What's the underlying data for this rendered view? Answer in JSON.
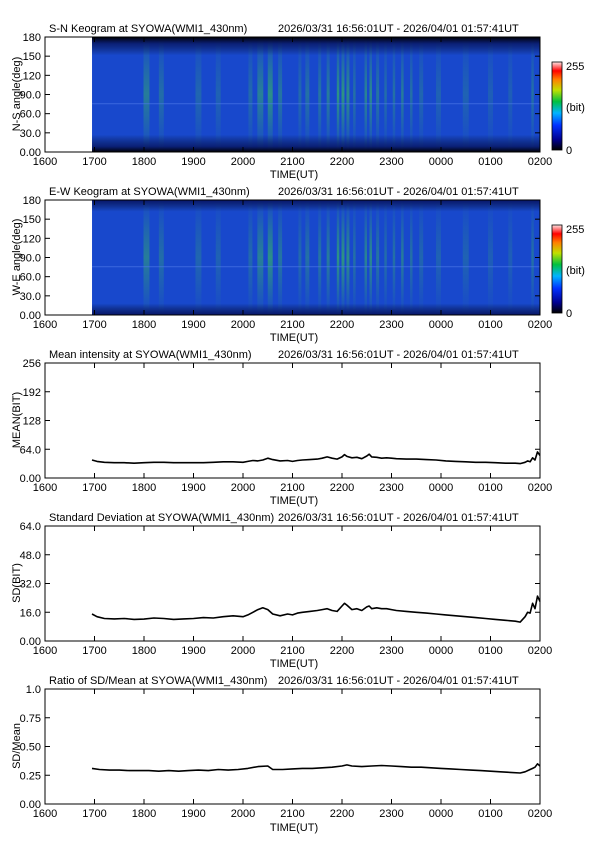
{
  "colors": {
    "ink": "#000000",
    "keogram_low": "#00007a",
    "keogram_mid": "#1f50d0",
    "keogram_aurora": "#3cc03c"
  },
  "time_ticks": [
    "1600",
    "1700",
    "1800",
    "1900",
    "2000",
    "2100",
    "2200",
    "2300",
    "0000",
    "0100",
    "0200"
  ],
  "xlabel": "TIME(UT)",
  "time_range": "2026/03/31 16:56:01UT - 2026/04/01 01:57:41UT",
  "keograms": [
    {
      "title": "S-N Keogram at SYOWA(WMI1_430nm)",
      "ylabel": "N-S angle(deg)",
      "yticks": [
        "0.00",
        "30.0",
        "60.0",
        "90.0",
        "120",
        "150",
        "180"
      ],
      "colorbar": {
        "max": "255",
        "unit": "(bit)",
        "min": "0"
      }
    },
    {
      "title": "E-W Keogram at SYOWA(WMI1_430nm)",
      "ylabel": "W-E angle(deg)",
      "yticks": [
        "0.00",
        "30.0",
        "60.0",
        "90.0",
        "120",
        "150",
        "180"
      ],
      "colorbar": {
        "max": "255",
        "unit": "(bit)",
        "min": "0"
      }
    }
  ],
  "chart_data": [
    {
      "type": "line",
      "title": "Mean intensity at SYOWA(WMI1_430nm)",
      "ylabel": "MEAN(BIT)",
      "xlabel": "TIME(UT)",
      "x_unit": "hours UT since 16:00",
      "yticks": [
        "0.00",
        "64.0",
        "128",
        "192",
        "256"
      ],
      "ylim": [
        0,
        256
      ],
      "x": [
        0.95,
        1.05,
        1.2,
        1.4,
        1.6,
        1.8,
        2.0,
        2.2,
        2.4,
        2.6,
        2.8,
        3.0,
        3.2,
        3.4,
        3.6,
        3.8,
        4.0,
        4.1,
        4.2,
        4.3,
        4.4,
        4.5,
        4.6,
        4.75,
        4.9,
        5.0,
        5.1,
        5.2,
        5.35,
        5.5,
        5.6,
        5.7,
        5.8,
        5.9,
        6.0,
        6.05,
        6.1,
        6.2,
        6.3,
        6.4,
        6.5,
        6.55,
        6.6,
        6.7,
        6.8,
        6.9,
        7.0,
        7.1,
        7.3,
        7.5,
        7.7,
        7.9,
        8.1,
        8.3,
        8.5,
        8.7,
        8.9,
        9.1,
        9.3,
        9.5,
        9.6,
        9.7,
        9.75,
        9.8,
        9.85,
        9.9,
        9.95,
        10.0
      ],
      "y": [
        40,
        37,
        35,
        34,
        34,
        33,
        34,
        35,
        35,
        34,
        34,
        34,
        34,
        35,
        36,
        36,
        35,
        37,
        39,
        38,
        40,
        44,
        41,
        38,
        39,
        37,
        39,
        40,
        41,
        42,
        44,
        47,
        44,
        42,
        47,
        52,
        48,
        45,
        46,
        43,
        49,
        53,
        47,
        46,
        44,
        45,
        44,
        43,
        42,
        42,
        41,
        40,
        38,
        37,
        36,
        35,
        35,
        34,
        33,
        33,
        32,
        35,
        38,
        36,
        45,
        40,
        58,
        50
      ]
    },
    {
      "type": "line",
      "title": "Standard Deviation at SYOWA(WMI1_430nm)",
      "ylabel": "SD(BIT)",
      "xlabel": "TIME(UT)",
      "x_unit": "hours UT since 16:00",
      "yticks": [
        "0.00",
        "16.0",
        "32.0",
        "48.0",
        "64.0"
      ],
      "ylim": [
        0,
        64
      ],
      "x": [
        0.95,
        1.05,
        1.2,
        1.4,
        1.6,
        1.8,
        2.0,
        2.2,
        2.4,
        2.6,
        2.8,
        3.0,
        3.2,
        3.4,
        3.6,
        3.8,
        4.0,
        4.1,
        4.2,
        4.3,
        4.4,
        4.5,
        4.6,
        4.75,
        4.9,
        5.0,
        5.1,
        5.2,
        5.35,
        5.5,
        5.6,
        5.7,
        5.8,
        5.9,
        6.0,
        6.05,
        6.1,
        6.2,
        6.3,
        6.4,
        6.5,
        6.55,
        6.6,
        6.7,
        6.8,
        6.9,
        7.0,
        7.1,
        7.3,
        7.5,
        7.7,
        7.9,
        8.1,
        8.3,
        8.5,
        8.7,
        8.9,
        9.1,
        9.3,
        9.5,
        9.6,
        9.7,
        9.75,
        9.8,
        9.85,
        9.9,
        9.95,
        10.0
      ],
      "y": [
        15,
        13.5,
        12.5,
        12.3,
        12.5,
        12.0,
        12.2,
        12.8,
        12.5,
        12.0,
        12.3,
        12.5,
        13.0,
        12.8,
        13.5,
        14.0,
        13.5,
        14.5,
        16.0,
        17.5,
        18.5,
        17.5,
        15.0,
        14.0,
        15.0,
        14.5,
        15.5,
        16.0,
        16.5,
        17.0,
        17.5,
        18.0,
        17.0,
        16.5,
        19.5,
        21.0,
        20.0,
        17.5,
        18.0,
        17.0,
        19.0,
        19.5,
        18.0,
        18.5,
        18.0,
        18.0,
        17.5,
        17.0,
        16.5,
        16.0,
        15.5,
        15.0,
        14.5,
        14.0,
        13.5,
        13.0,
        12.5,
        12.0,
        11.5,
        11.0,
        10.5,
        13.5,
        16.0,
        15.5,
        21.0,
        18.0,
        25.0,
        22.0
      ]
    },
    {
      "type": "line",
      "title": "Ratio of SD/Mean at SYOWA(WMI1_430nm)",
      "ylabel": "SD/Mean",
      "xlabel": "TIME(UT)",
      "x_unit": "hours UT since 16:00",
      "yticks": [
        "0.00",
        "0.25",
        "0.50",
        "0.75",
        "1.0"
      ],
      "ylim": [
        0,
        1
      ],
      "x": [
        0.95,
        1.1,
        1.3,
        1.5,
        1.7,
        1.9,
        2.1,
        2.3,
        2.5,
        2.7,
        2.9,
        3.1,
        3.3,
        3.5,
        3.7,
        3.9,
        4.1,
        4.3,
        4.5,
        4.6,
        4.8,
        5.0,
        5.2,
        5.4,
        5.6,
        5.8,
        6.0,
        6.1,
        6.2,
        6.4,
        6.6,
        6.8,
        7.0,
        7.2,
        7.4,
        7.6,
        7.8,
        8.0,
        8.2,
        8.4,
        8.6,
        8.8,
        9.0,
        9.2,
        9.4,
        9.6,
        9.7,
        9.8,
        9.85,
        9.9,
        9.95,
        10.0
      ],
      "y": [
        0.31,
        0.3,
        0.295,
        0.295,
        0.29,
        0.29,
        0.29,
        0.285,
        0.29,
        0.285,
        0.29,
        0.295,
        0.29,
        0.3,
        0.295,
        0.3,
        0.31,
        0.325,
        0.33,
        0.3,
        0.3,
        0.305,
        0.31,
        0.31,
        0.315,
        0.32,
        0.33,
        0.34,
        0.33,
        0.325,
        0.33,
        0.335,
        0.33,
        0.325,
        0.32,
        0.32,
        0.315,
        0.31,
        0.305,
        0.3,
        0.295,
        0.29,
        0.285,
        0.28,
        0.275,
        0.27,
        0.28,
        0.3,
        0.31,
        0.32,
        0.35,
        0.33
      ]
    }
  ]
}
